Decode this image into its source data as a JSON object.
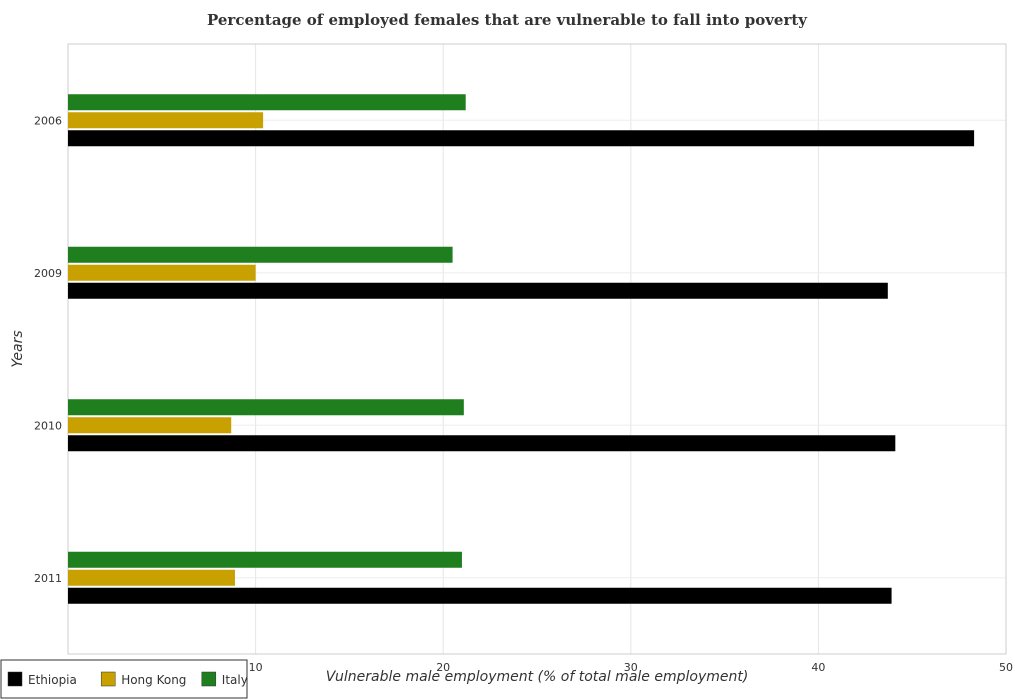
{
  "chart_data": {
    "type": "bar",
    "orientation": "horizontal",
    "title": "Percentage of employed females that are vulnerable to fall into poverty",
    "xlabel": "Vulnerable male employment (% of total male employment)",
    "ylabel": "Years",
    "categories": [
      "2006",
      "2009",
      "2010",
      "2011"
    ],
    "xlim": [
      0,
      50
    ],
    "xticks": [
      0,
      10,
      20,
      30,
      40,
      50
    ],
    "grid": true,
    "legend_position": "bottom-left",
    "series": [
      {
        "name": "Ethiopia",
        "color": "#000000",
        "values": [
          48.3,
          43.7,
          44.1,
          43.9
        ]
      },
      {
        "name": "Hong Kong",
        "color": "#c8a000",
        "values": [
          10.4,
          10.0,
          8.7,
          8.9
        ]
      },
      {
        "name": "Italy",
        "color": "#1f7f1f",
        "values": [
          21.2,
          20.5,
          21.1,
          21.0
        ]
      }
    ]
  }
}
